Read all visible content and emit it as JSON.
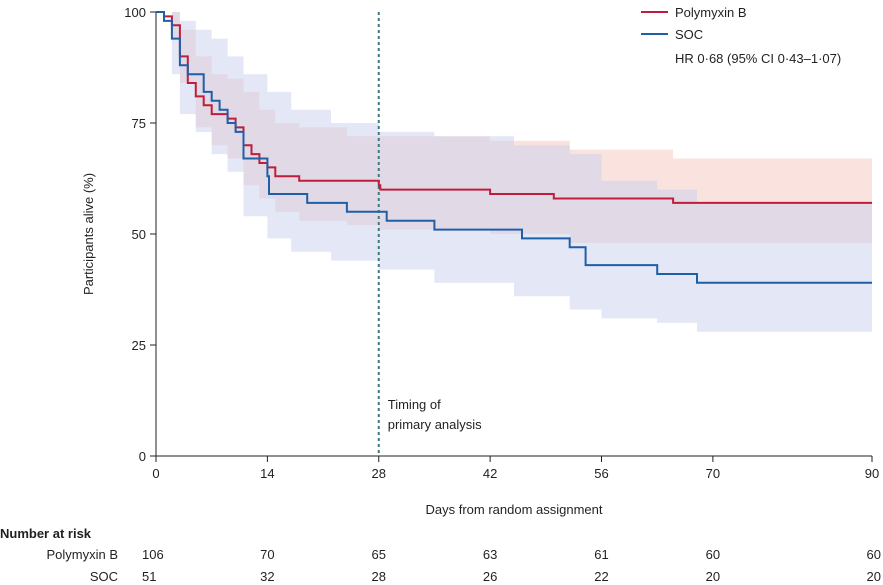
{
  "chart_data": {
    "type": "line",
    "title": "",
    "xlabel": "Days from random assignment",
    "ylabel": "Participants alive (%)",
    "xlim": [
      0,
      90
    ],
    "ylim": [
      0,
      100
    ],
    "x_ticks": [
      0,
      14,
      28,
      42,
      56,
      70,
      90
    ],
    "y_ticks": [
      0,
      25,
      50,
      75,
      100
    ],
    "grid": false,
    "legend_position": "top-right",
    "hr_text": "HR 0·68 (95% CI 0·43–1·07)",
    "reference_line": {
      "x": 28,
      "label_lines": [
        "Timing of",
        "primary analysis"
      ]
    },
    "series": [
      {
        "name": "Polymyxin B",
        "color": "#be1e3c",
        "band_color": "#f5c6c0",
        "steps": [
          [
            0,
            100
          ],
          [
            1,
            99
          ],
          [
            2,
            97
          ],
          [
            3,
            90
          ],
          [
            4,
            84
          ],
          [
            5,
            81
          ],
          [
            6,
            79
          ],
          [
            7,
            77
          ],
          [
            9,
            76
          ],
          [
            10,
            74
          ],
          [
            11,
            70
          ],
          [
            12,
            68
          ],
          [
            13,
            66
          ],
          [
            14,
            65
          ],
          [
            15,
            63
          ],
          [
            18,
            62
          ],
          [
            28,
            61
          ],
          [
            28.2,
            60
          ],
          [
            42,
            59
          ],
          [
            50,
            58
          ],
          [
            65,
            57
          ],
          [
            90,
            57
          ]
        ],
        "ci_upper": [
          [
            0,
            100
          ],
          [
            2,
            100
          ],
          [
            3,
            96
          ],
          [
            5,
            90
          ],
          [
            7,
            86
          ],
          [
            9,
            85
          ],
          [
            11,
            82
          ],
          [
            13,
            78
          ],
          [
            15,
            75
          ],
          [
            18,
            74
          ],
          [
            24,
            72
          ],
          [
            28,
            72
          ],
          [
            42,
            71
          ],
          [
            52,
            69
          ],
          [
            65,
            67
          ],
          [
            90,
            67
          ]
        ],
        "ci_lower": [
          [
            0,
            100
          ],
          [
            2,
            94
          ],
          [
            3,
            84
          ],
          [
            5,
            74
          ],
          [
            7,
            70
          ],
          [
            9,
            67
          ],
          [
            11,
            61
          ],
          [
            13,
            58
          ],
          [
            15,
            55
          ],
          [
            18,
            53
          ],
          [
            24,
            52
          ],
          [
            28,
            51
          ],
          [
            42,
            50
          ],
          [
            52,
            48
          ],
          [
            65,
            48
          ],
          [
            90,
            48
          ]
        ]
      },
      {
        "name": "SOC",
        "color": "#1f5fa8",
        "band_color": "#c7cfee",
        "steps": [
          [
            0,
            100
          ],
          [
            1,
            98
          ],
          [
            2,
            94
          ],
          [
            3,
            88
          ],
          [
            4,
            86
          ],
          [
            6,
            82
          ],
          [
            7,
            80
          ],
          [
            8,
            78
          ],
          [
            9,
            75
          ],
          [
            10,
            73
          ],
          [
            11,
            67
          ],
          [
            14,
            63
          ],
          [
            14.2,
            59
          ],
          [
            19,
            57
          ],
          [
            24,
            55
          ],
          [
            29,
            53
          ],
          [
            35,
            51
          ],
          [
            46,
            49
          ],
          [
            52,
            47
          ],
          [
            54,
            43
          ],
          [
            63,
            41
          ],
          [
            68,
            39
          ],
          [
            90,
            39
          ]
        ],
        "ci_upper": [
          [
            0,
            100
          ],
          [
            2,
            100
          ],
          [
            3,
            98
          ],
          [
            5,
            96
          ],
          [
            7,
            94
          ],
          [
            9,
            90
          ],
          [
            11,
            86
          ],
          [
            14,
            82
          ],
          [
            17,
            78
          ],
          [
            22,
            75
          ],
          [
            28,
            73
          ],
          [
            35,
            72
          ],
          [
            45,
            70
          ],
          [
            52,
            68
          ],
          [
            56,
            62
          ],
          [
            63,
            60
          ],
          [
            68,
            57
          ],
          [
            90,
            56
          ]
        ],
        "ci_lower": [
          [
            0,
            100
          ],
          [
            2,
            86
          ],
          [
            3,
            77
          ],
          [
            5,
            73
          ],
          [
            7,
            68
          ],
          [
            9,
            64
          ],
          [
            11,
            54
          ],
          [
            14,
            49
          ],
          [
            17,
            46
          ],
          [
            22,
            44
          ],
          [
            28,
            42
          ],
          [
            35,
            39
          ],
          [
            45,
            36
          ],
          [
            52,
            33
          ],
          [
            56,
            31
          ],
          [
            63,
            30
          ],
          [
            68,
            28
          ],
          [
            90,
            28
          ]
        ]
      }
    ]
  },
  "risk_table": {
    "header": "Number at risk",
    "timepoints": [
      0,
      14,
      28,
      42,
      56,
      70,
      90
    ],
    "rows": [
      {
        "label": "Polymyxin B",
        "values": [
          "106",
          "70",
          "65",
          "63",
          "61",
          "60",
          "60"
        ]
      },
      {
        "label": "SOC",
        "values": [
          "51",
          "32",
          "28",
          "26",
          "22",
          "20",
          "20"
        ]
      }
    ]
  }
}
